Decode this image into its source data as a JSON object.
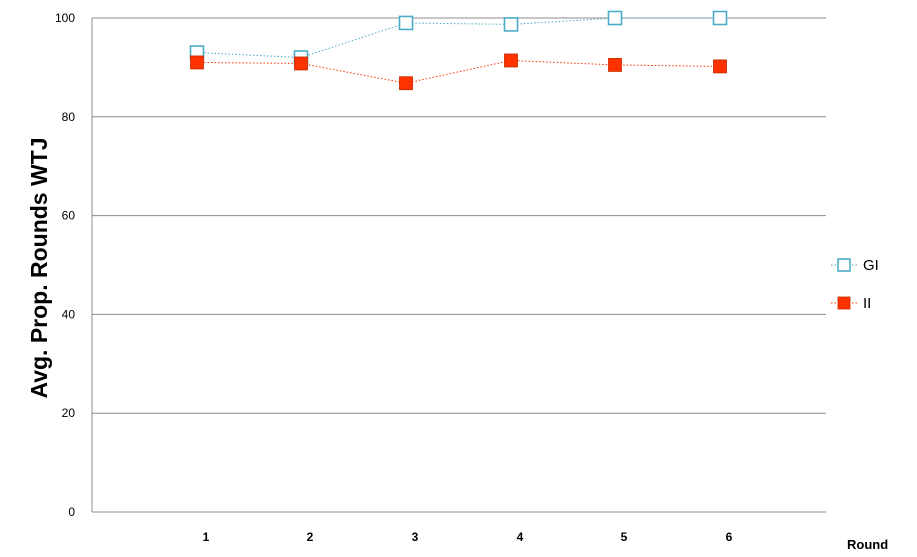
{
  "chart_data": {
    "type": "line",
    "xlabel": "Round",
    "ylabel": "Avg. Prop. Rounds WTJ",
    "categories": [
      "1",
      "2",
      "3",
      "4",
      "5",
      "6"
    ],
    "ylim": [
      0,
      100
    ],
    "yticks": [
      "0",
      "20",
      "40",
      "60",
      "80",
      "100"
    ],
    "grid": true,
    "legend_position": "right",
    "series": [
      {
        "name": "GI",
        "values": [
          93,
          92,
          99,
          98.7,
          100,
          100
        ],
        "color": "#4bacc6",
        "marker": "hollow-square"
      },
      {
        "name": "II",
        "values": [
          91,
          90.8,
          86.8,
          91.4,
          90.5,
          90.2
        ],
        "color": "#ff3300",
        "marker": "filled-square"
      }
    ]
  }
}
